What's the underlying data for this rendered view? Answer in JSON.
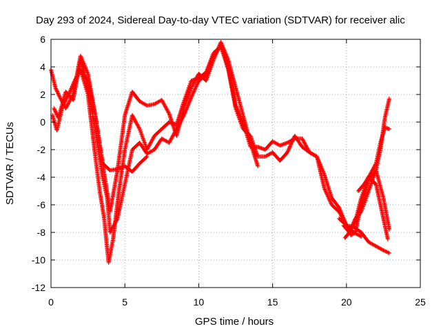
{
  "chart_data": {
    "type": "scatter",
    "title": "Day 293 of 2024, Sidereal Day-to-day VTEC variation (SDTVAR) for receiver alic",
    "xlabel": "GPS time / hours",
    "ylabel": "SDTVAR / TECUs",
    "xlim": [
      0,
      25
    ],
    "ylim": [
      -12,
      6
    ],
    "xticks": [
      0,
      5,
      10,
      15,
      20,
      25
    ],
    "yticks": [
      -12,
      -10,
      -8,
      -6,
      -4,
      -2,
      0,
      2,
      4,
      6
    ],
    "grid": true,
    "marker": "plus",
    "color": "#ff0000",
    "series": [
      {
        "x": [
          0.0,
          0.3,
          0.6,
          1.0,
          1.5,
          2.0,
          2.5,
          3.0,
          3.5,
          4.0,
          4.5,
          5.0,
          5.5,
          6.0,
          6.5,
          7.0,
          7.5,
          8.0,
          8.5,
          9.0,
          9.5,
          10.0,
          10.5,
          11.0,
          11.5,
          12.0,
          12.5,
          13.0,
          13.5,
          14.0
        ],
        "y": [
          3.8,
          2.5,
          1.8,
          1.0,
          2.0,
          4.8,
          3.5,
          0.5,
          -3.0,
          -6.5,
          -3.5,
          0.5,
          2.2,
          1.5,
          1.2,
          1.3,
          1.6,
          0.6,
          -1.0,
          1.0,
          2.5,
          3.5,
          3.0,
          4.5,
          5.8,
          4.5,
          2.5,
          0.5,
          -1.5,
          -3.2
        ]
      },
      {
        "x": [
          0.2,
          0.5,
          1.0,
          1.5,
          2.0,
          2.5,
          3.0,
          3.5,
          3.8,
          4.0,
          4.5,
          5.0,
          5.5,
          6.0,
          6.5,
          7.0,
          7.5,
          8.0,
          8.5,
          9.0,
          9.5,
          10.0,
          10.5,
          11.0,
          11.5,
          12.0,
          12.5,
          13.0,
          13.5,
          14.0,
          14.5,
          15.0,
          15.5,
          16.0,
          16.5,
          17.0,
          17.5,
          18.0,
          18.5,
          19.0,
          19.5,
          20.0,
          20.5,
          21.0
        ],
        "y": [
          1.0,
          0.3,
          2.2,
          1.6,
          4.5,
          2.5,
          -0.5,
          -4.0,
          -5.5,
          -8.0,
          -7.0,
          -4.5,
          -2.0,
          -1.5,
          -2.3,
          -2.0,
          -1.2,
          -1.5,
          -0.5,
          0.5,
          1.8,
          3.0,
          3.4,
          4.8,
          5.5,
          4.0,
          1.2,
          0.0,
          -1.8,
          -1.8,
          -2.0,
          -1.4,
          -1.7,
          -1.5,
          -1.2,
          -1.2,
          -2.2,
          -2.5,
          -4.8,
          -6.0,
          -6.5,
          -7.5,
          -8.0,
          -8.3
        ]
      },
      {
        "x": [
          0.1,
          0.4,
          0.8,
          1.2,
          1.6,
          2.0,
          2.5,
          3.0,
          3.3,
          3.6,
          3.9,
          4.2,
          4.6,
          5.0,
          5.5,
          6.0,
          6.5,
          7.0,
          7.5,
          8.0,
          8.5,
          9.0,
          9.5,
          10.0,
          10.5,
          11.0,
          11.5,
          12.0,
          12.5,
          13.0,
          13.5,
          14.0,
          14.5,
          15.0,
          15.5,
          16.0,
          16.5,
          17.0,
          17.5,
          18.0,
          18.5,
          19.0,
          19.5,
          20.0,
          20.5,
          21.0,
          21.5,
          22.0,
          22.5,
          22.9
        ],
        "y": [
          0.5,
          -0.6,
          1.2,
          2.0,
          3.0,
          3.8,
          2.0,
          -2.5,
          -5.0,
          -7.0,
          -10.2,
          -8.5,
          -5.0,
          -2.0,
          0.5,
          -0.5,
          -2.0,
          -1.0,
          -0.5,
          0.0,
          -0.2,
          1.5,
          3.0,
          3.2,
          3.6,
          5.0,
          5.5,
          3.8,
          1.0,
          -0.5,
          -1.0,
          -2.5,
          -2.5,
          -2.2,
          -2.8,
          -2.2,
          -1.0,
          -1.8,
          -2.2,
          -2.5,
          -3.8,
          -5.5,
          -6.2,
          -7.5,
          -7.6,
          -8.0,
          -8.7,
          -9.0,
          -9.3,
          -9.5
        ]
      },
      {
        "x": [
          2.0,
          2.5,
          3.0,
          3.5,
          4.0,
          4.5,
          5.0,
          5.5,
          6.0,
          6.5
        ],
        "y": [
          3.8,
          3.0,
          0.5,
          -3.0,
          -3.5,
          -3.4,
          -3.2,
          -3.6,
          -3.0,
          -2.5
        ]
      },
      {
        "x": [
          19.5,
          20.0,
          20.3,
          20.6,
          21.0,
          21.5,
          22.0,
          22.5,
          22.9
        ],
        "y": [
          -7.0,
          -7.5,
          -8.2,
          -8.0,
          -6.0,
          -4.2,
          -3.5,
          -5.5,
          -7.8
        ]
      },
      {
        "x": [
          19.8,
          20.2,
          20.6,
          21.0,
          21.5,
          22.0,
          22.4,
          22.8
        ],
        "y": [
          -7.5,
          -8.0,
          -7.2,
          -5.5,
          -4.0,
          -4.5,
          -6.5,
          -8.5
        ]
      },
      {
        "x": [
          19.9,
          20.2,
          20.6,
          21.0,
          21.5,
          22.0,
          22.3,
          22.6,
          22.9
        ],
        "y": [
          -8.4,
          -8.0,
          -7.0,
          -6.5,
          -5.0,
          -3.5,
          -2.0,
          0.3,
          1.7
        ]
      },
      {
        "x": [
          20.8,
          21.2,
          21.6,
          22.0,
          22.3,
          22.6,
          22.9
        ],
        "y": [
          -5.0,
          -4.5,
          -3.8,
          -3.0,
          -1.5,
          -0.4,
          -0.5
        ]
      }
    ]
  }
}
